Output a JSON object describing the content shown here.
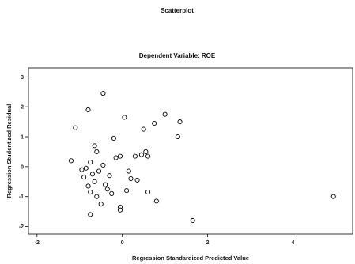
{
  "chart_data": {
    "type": "scatter",
    "title": "Scatterplot",
    "subtitle": "Dependent Variable: ROE",
    "xlabel": "Regression Standardized Predicted Value",
    "ylabel": "Regression Studentized Residual",
    "xlim": [
      -2.2,
      5.4
    ],
    "ylim": [
      -2.25,
      3.3
    ],
    "xticks": [
      -2,
      0,
      2,
      4
    ],
    "yticks": [
      -2,
      -1,
      0,
      1,
      2,
      3
    ],
    "grid": false,
    "points": [
      {
        "x": -0.45,
        "y": 2.45
      },
      {
        "x": -0.8,
        "y": 1.9
      },
      {
        "x": 0.05,
        "y": 1.65
      },
      {
        "x": 1.0,
        "y": 1.75
      },
      {
        "x": 1.35,
        "y": 1.5
      },
      {
        "x": 0.75,
        "y": 1.45
      },
      {
        "x": 0.5,
        "y": 1.25
      },
      {
        "x": -1.1,
        "y": 1.3
      },
      {
        "x": 1.3,
        "y": 1.0
      },
      {
        "x": -0.2,
        "y": 0.95
      },
      {
        "x": -0.65,
        "y": 0.7
      },
      {
        "x": -0.6,
        "y": 0.5
      },
      {
        "x": 0.55,
        "y": 0.5
      },
      {
        "x": 0.45,
        "y": 0.4
      },
      {
        "x": 0.6,
        "y": 0.35
      },
      {
        "x": 0.3,
        "y": 0.35
      },
      {
        "x": -0.15,
        "y": 0.3
      },
      {
        "x": -0.05,
        "y": 0.35
      },
      {
        "x": -1.2,
        "y": 0.2
      },
      {
        "x": -0.75,
        "y": 0.15
      },
      {
        "x": -0.45,
        "y": 0.05
      },
      {
        "x": -0.95,
        "y": -0.1
      },
      {
        "x": -0.85,
        "y": -0.05
      },
      {
        "x": -0.55,
        "y": -0.15
      },
      {
        "x": 0.15,
        "y": -0.15
      },
      {
        "x": -0.7,
        "y": -0.25
      },
      {
        "x": -0.3,
        "y": -0.3
      },
      {
        "x": -0.9,
        "y": -0.35
      },
      {
        "x": 0.2,
        "y": -0.4
      },
      {
        "x": 0.35,
        "y": -0.45
      },
      {
        "x": -0.65,
        "y": -0.5
      },
      {
        "x": -0.4,
        "y": -0.6
      },
      {
        "x": -0.8,
        "y": -0.65
      },
      {
        "x": -0.35,
        "y": -0.75
      },
      {
        "x": 0.1,
        "y": -0.8
      },
      {
        "x": -0.75,
        "y": -0.85
      },
      {
        "x": -0.25,
        "y": -0.9
      },
      {
        "x": 0.6,
        "y": -0.85
      },
      {
        "x": -0.6,
        "y": -1.0
      },
      {
        "x": 0.8,
        "y": -1.15
      },
      {
        "x": -0.5,
        "y": -1.25
      },
      {
        "x": -0.05,
        "y": -1.35
      },
      {
        "x": -0.05,
        "y": -1.45
      },
      {
        "x": -0.75,
        "y": -1.6
      },
      {
        "x": 1.65,
        "y": -1.8
      },
      {
        "x": 4.95,
        "y": -1.0
      }
    ]
  }
}
